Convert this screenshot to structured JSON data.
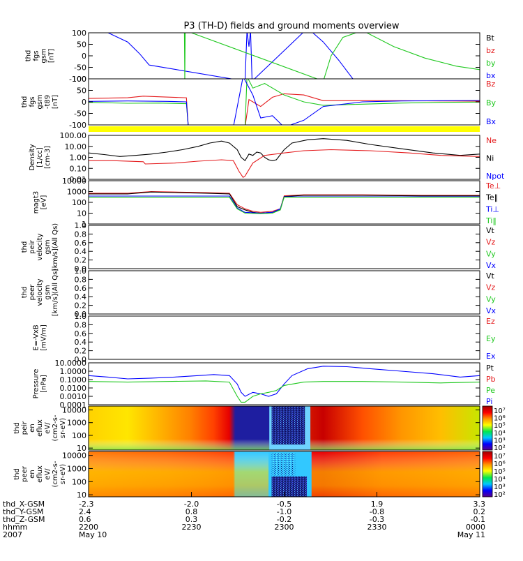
{
  "title": "P3 (TH-D) fields and ground moments overview",
  "colors": {
    "black": "#000000",
    "red": "#e41a1c",
    "green": "#1ec81e",
    "blue": "#0000ff",
    "yellow": "#ffff00"
  },
  "chart_data": [
    {
      "type": "line",
      "id": "fgs",
      "ylabel": [
        "thd",
        "fgs",
        "gsm",
        "[nT]"
      ],
      "ylim": [
        -100,
        100
      ],
      "yticks": [
        "100",
        "50",
        "0",
        "-50",
        "-100"
      ],
      "legend": [
        {
          "label": "Bt",
          "color": "#000000"
        },
        {
          "label": "bz",
          "color": "#e41a1c"
        },
        {
          "label": "by",
          "color": "#1ec81e"
        },
        {
          "label": "bx",
          "color": "#0000ff"
        }
      ],
      "series": [
        {
          "name": "bx",
          "color": "#0000ff",
          "x": [
            0.0,
            0.05,
            0.1,
            0.13,
            0.155,
            0.4,
            0.405,
            0.41,
            0.414,
            0.418,
            0.56,
            0.6,
            0.64,
            0.68
          ],
          "y": [
            110,
            100,
            60,
            10,
            -40,
            -110,
            110,
            40,
            110,
            -110,
            120,
            60,
            -20,
            -110
          ]
        },
        {
          "name": "by",
          "color": "#1ec81e",
          "x": [
            0.245,
            0.246,
            0.247,
            0.6,
            0.62,
            0.65,
            0.7,
            0.78,
            0.86,
            0.94,
            1.0
          ],
          "y": [
            110,
            -110,
            110,
            -110,
            0,
            80,
            110,
            40,
            -10,
            -45,
            -60
          ]
        }
      ]
    },
    {
      "type": "line",
      "id": "fgs_t89",
      "ylabel": [
        "thd",
        "fgs",
        "gsm",
        "-t89",
        "[nT]"
      ],
      "ylim": [
        -100,
        100
      ],
      "yticks": [
        "100",
        "50",
        "0",
        "-50",
        "-100"
      ],
      "legend": [
        {
          "label": "Bz",
          "color": "#e41a1c"
        },
        {
          "label": "By",
          "color": "#1ec81e"
        },
        {
          "label": "Bx",
          "color": "#0000ff"
        }
      ],
      "series": [
        {
          "name": "Bz",
          "color": "#e41a1c",
          "x": [
            0.0,
            0.1,
            0.14,
            0.18,
            0.25,
            0.255,
            0.4,
            0.41,
            0.44,
            0.47,
            0.5,
            0.55,
            0.6,
            0.7,
            0.8,
            0.9,
            1.0
          ],
          "y": [
            15,
            18,
            25,
            22,
            18,
            -110,
            -110,
            10,
            -20,
            20,
            35,
            30,
            5,
            5,
            5,
            4,
            3
          ]
        },
        {
          "name": "By",
          "color": "#1ec81e",
          "x": [
            0.0,
            0.1,
            0.18,
            0.25,
            0.255,
            0.4,
            0.405,
            0.42,
            0.45,
            0.5,
            0.55,
            0.6,
            0.7,
            0.8,
            0.9,
            1.0
          ],
          "y": [
            -2,
            -6,
            -5,
            -8,
            -110,
            -110,
            110,
            60,
            80,
            30,
            0,
            -15,
            -10,
            -5,
            -2,
            -1
          ]
        },
        {
          "name": "Bx",
          "color": "#0000ff",
          "x": [
            0.0,
            0.1,
            0.2,
            0.25,
            0.255,
            0.37,
            0.395,
            0.42,
            0.44,
            0.47,
            0.5,
            0.55,
            0.6,
            0.7,
            0.8,
            0.9,
            1.0
          ],
          "y": [
            2,
            4,
            2,
            0,
            -110,
            -110,
            110,
            30,
            -70,
            -60,
            -110,
            -80,
            -20,
            0,
            4,
            5,
            6
          ]
        }
      ]
    },
    {
      "type": "bar",
      "id": "flag",
      "fill": "#ffff00"
    },
    {
      "type": "line",
      "id": "density",
      "yscale": "log",
      "ylabel": [
        "Density",
        "[1/cc]",
        "[cm-3]"
      ],
      "ylim": [
        0.01,
        100
      ],
      "yticks": [
        "100.00",
        "10.00",
        "1.00",
        "0.10",
        "0.01"
      ],
      "legend": [
        {
          "label": "Ne",
          "color": "#e41a1c"
        },
        {
          "label": "Ni",
          "color": "#000000"
        },
        {
          "label": "Npot",
          "color": "#0000ff"
        }
      ],
      "series": [
        {
          "name": "Ni",
          "color": "#000000",
          "x": [
            0.0,
            0.04,
            0.08,
            0.12,
            0.16,
            0.2,
            0.24,
            0.28,
            0.31,
            0.34,
            0.36,
            0.38,
            0.39,
            0.4,
            0.41,
            0.42,
            0.43,
            0.44,
            0.45,
            0.46,
            0.47,
            0.48,
            0.5,
            0.52,
            0.56,
            0.6,
            0.66,
            0.72,
            0.8,
            0.88,
            0.95,
            1.0
          ],
          "y": [
            2.5,
            1.8,
            1.2,
            1.5,
            2.0,
            3.0,
            5.0,
            10,
            20,
            30,
            20,
            5,
            1.0,
            0.5,
            2.0,
            1.5,
            3.0,
            2.5,
            1.0,
            0.6,
            0.5,
            0.6,
            5,
            20,
            40,
            50,
            35,
            15,
            6,
            2.5,
            1.5,
            2.0
          ]
        },
        {
          "name": "Ne",
          "color": "#e41a1c",
          "x": [
            0.0,
            0.06,
            0.14,
            0.145,
            0.22,
            0.28,
            0.34,
            0.37,
            0.385,
            0.395,
            0.4,
            0.42,
            0.45,
            0.5,
            0.55,
            0.62,
            0.72,
            0.82,
            0.9,
            1.0
          ],
          "y": [
            0.5,
            0.5,
            0.4,
            0.25,
            0.3,
            0.45,
            0.6,
            0.5,
            0.05,
            0.015,
            0.02,
            0.3,
            1.5,
            2.5,
            4.0,
            5.0,
            4.0,
            2.5,
            1.5,
            1.2
          ]
        }
      ]
    },
    {
      "type": "line",
      "id": "temperature",
      "yscale": "log",
      "ylabel": [
        "magt3",
        "[eV]"
      ],
      "ylim": [
        1,
        10000
      ],
      "yticks": [
        "10000",
        "1000",
        "100",
        "10",
        "1"
      ],
      "legend": [
        {
          "label": "Te⊥",
          "color": "#e41a1c"
        },
        {
          "label": "Te‖",
          "color": "#000000"
        },
        {
          "label": "Ti⊥",
          "color": "#0000ff"
        },
        {
          "label": "Ti‖",
          "color": "#1ec81e"
        }
      ],
      "series": [
        {
          "name": "Te⊥",
          "color": "#e41a1c",
          "x": [
            0.0,
            0.1,
            0.16,
            0.22,
            0.3,
            0.36,
            0.38,
            0.4,
            0.42,
            0.44,
            0.47,
            0.49,
            0.5,
            0.55,
            0.7,
            0.85,
            1.0
          ],
          "y": [
            700,
            700,
            1000,
            900,
            800,
            700,
            60,
            25,
            15,
            12,
            15,
            25,
            400,
            500,
            500,
            450,
            450
          ]
        },
        {
          "name": "Te‖",
          "color": "#000000",
          "x": [
            0.0,
            0.1,
            0.16,
            0.22,
            0.3,
            0.36,
            0.38,
            0.4,
            0.42,
            0.44,
            0.47,
            0.49,
            0.5,
            0.55,
            0.7,
            0.85,
            1.0
          ],
          "y": [
            600,
            600,
            900,
            800,
            700,
            600,
            40,
            20,
            12,
            10,
            12,
            20,
            350,
            450,
            450,
            400,
            400
          ]
        },
        {
          "name": "Ti⊥",
          "color": "#0000ff",
          "x": [
            0.0,
            0.2,
            0.36,
            0.38,
            0.4,
            0.44,
            0.47,
            0.49,
            0.5,
            0.7,
            1.0
          ],
          "y": [
            380,
            380,
            380,
            30,
            12,
            10,
            12,
            25,
            330,
            330,
            330
          ]
        },
        {
          "name": "Ti‖",
          "color": "#1ec81e",
          "x": [
            0.0,
            0.2,
            0.36,
            0.38,
            0.4,
            0.44,
            0.47,
            0.49,
            0.5,
            0.7,
            1.0
          ],
          "y": [
            300,
            300,
            300,
            25,
            10,
            9,
            10,
            20,
            300,
            300,
            300
          ]
        }
      ]
    },
    {
      "type": "line",
      "id": "peir_velocity",
      "ylabel": [
        "thd",
        "peir",
        "velocity",
        "gsm",
        "[km/s](All Qs)"
      ],
      "ylim": [
        0,
        1
      ],
      "yticks": [
        "1.0",
        "0.8",
        "0.6",
        "0.4",
        "0.2",
        "0.0"
      ],
      "legend": [
        {
          "label": "Vt",
          "color": "#000000"
        },
        {
          "label": "Vz",
          "color": "#e41a1c"
        },
        {
          "label": "Vy",
          "color": "#1ec81e"
        },
        {
          "label": "Vx",
          "color": "#0000ff"
        }
      ],
      "series": []
    },
    {
      "type": "line",
      "id": "peer_velocity",
      "ylabel": [
        "thd",
        "peer",
        "velocity",
        "gsm",
        "[km/s](All Qs)"
      ],
      "ylim": [
        0,
        1
      ],
      "yticks": [
        "1.0",
        "0.8",
        "0.6",
        "0.4",
        "0.2",
        "0.0"
      ],
      "legend": [
        {
          "label": "Vt",
          "color": "#000000"
        },
        {
          "label": "Vz",
          "color": "#e41a1c"
        },
        {
          "label": "Vy",
          "color": "#1ec81e"
        },
        {
          "label": "Vx",
          "color": "#0000ff"
        }
      ],
      "series": []
    },
    {
      "type": "line",
      "id": "efield",
      "ylabel": [
        "E=-VxB",
        "[mV/m]"
      ],
      "ylim": [
        0,
        1
      ],
      "yticks": [
        "1.0",
        "0.8",
        "0.6",
        "0.4",
        "0.2",
        "0.0"
      ],
      "legend": [
        {
          "label": "Ez",
          "color": "#e41a1c"
        },
        {
          "label": "Ey",
          "color": "#1ec81e"
        },
        {
          "label": "Ex",
          "color": "#0000ff"
        }
      ],
      "series": []
    },
    {
      "type": "line",
      "id": "pressure",
      "yscale": "log",
      "ylabel": [
        "Pressure",
        "[nPa]"
      ],
      "ylim": [
        0.0001,
        10
      ],
      "yticks": [
        "10.0000",
        "1.0000",
        "0.1000",
        "0.0100",
        "0.0010",
        "0.0001"
      ],
      "legend": [
        {
          "label": "Pt",
          "color": "#000000"
        },
        {
          "label": "Pb",
          "color": "#e41a1c"
        },
        {
          "label": "Pe",
          "color": "#1ec81e"
        },
        {
          "label": "Pi",
          "color": "#0000ff"
        }
      ],
      "series": [
        {
          "name": "Pi",
          "color": "#0000ff",
          "x": [
            0.0,
            0.05,
            0.1,
            0.16,
            0.22,
            0.28,
            0.32,
            0.36,
            0.38,
            0.39,
            0.4,
            0.42,
            0.44,
            0.46,
            0.48,
            0.5,
            0.52,
            0.56,
            0.6,
            0.66,
            0.72,
            0.8,
            0.88,
            0.95,
            1.0
          ],
          "y": [
            0.3,
            0.2,
            0.12,
            0.15,
            0.2,
            0.3,
            0.4,
            0.3,
            0.03,
            0.003,
            0.001,
            0.003,
            0.002,
            0.001,
            0.002,
            0.03,
            0.3,
            2,
            4,
            3.5,
            2,
            1,
            0.5,
            0.2,
            0.3
          ]
        },
        {
          "name": "Pe",
          "color": "#1ec81e",
          "x": [
            0.0,
            0.1,
            0.2,
            0.3,
            0.36,
            0.38,
            0.39,
            0.4,
            0.42,
            0.44,
            0.46,
            0.48,
            0.5,
            0.55,
            0.6,
            0.7,
            0.8,
            0.9,
            1.0
          ],
          "y": [
            0.06,
            0.05,
            0.06,
            0.07,
            0.05,
            0.001,
            0.0002,
            0.0002,
            0.001,
            0.002,
            0.003,
            0.005,
            0.02,
            0.05,
            0.06,
            0.06,
            0.05,
            0.04,
            0.05
          ]
        }
      ]
    },
    {
      "type": "heatmap",
      "id": "peir_spectrum",
      "ylabel": [
        "thd",
        "peir",
        "en",
        "eflux",
        "eV/",
        "(cm2-s-",
        "sr-eV)"
      ],
      "yscale": "log",
      "ylim": [
        7,
        20000
      ],
      "yticks": [
        "10000",
        "1000",
        "100",
        "10"
      ]
    },
    {
      "type": "heatmap",
      "id": "peer_spectrum",
      "ylabel": [
        "thd",
        "peer",
        "en",
        "eflux",
        "eV/",
        "(cm2-s-",
        "sr-eV)"
      ],
      "yscale": "log",
      "ylim": [
        7,
        20000
      ],
      "yticks": [
        "10000",
        "1000",
        "100",
        "10"
      ]
    }
  ],
  "colorbars": [
    {
      "ticks": [
        "10⁷",
        "10⁶",
        "10⁵",
        "10⁴",
        "10³",
        "10²"
      ]
    },
    {
      "ticks": [
        "10⁷",
        "10⁶",
        "10⁵",
        "10⁴",
        "10³",
        "10²"
      ]
    }
  ],
  "xaxis": {
    "rows": [
      {
        "label": "thd_X-GSM",
        "values": [
          "-2.3",
          "-2.0",
          "-0.5",
          "1.9",
          "3.3"
        ]
      },
      {
        "label": "thd_Y-GSM",
        "values": [
          "2.4",
          "0.8",
          "-1.0",
          "-0.8",
          "0.2"
        ]
      },
      {
        "label": "thd_Z-GSM",
        "values": [
          "0.6",
          "0.3",
          "-0.2",
          "-0.3",
          "-0.1"
        ]
      },
      {
        "label": "hhmm",
        "values": [
          "2200",
          "2230",
          "2300",
          "2330",
          "0000"
        ]
      },
      {
        "label": "2007",
        "values": [
          "May 10",
          "",
          "",
          "",
          "May 11"
        ]
      }
    ]
  }
}
